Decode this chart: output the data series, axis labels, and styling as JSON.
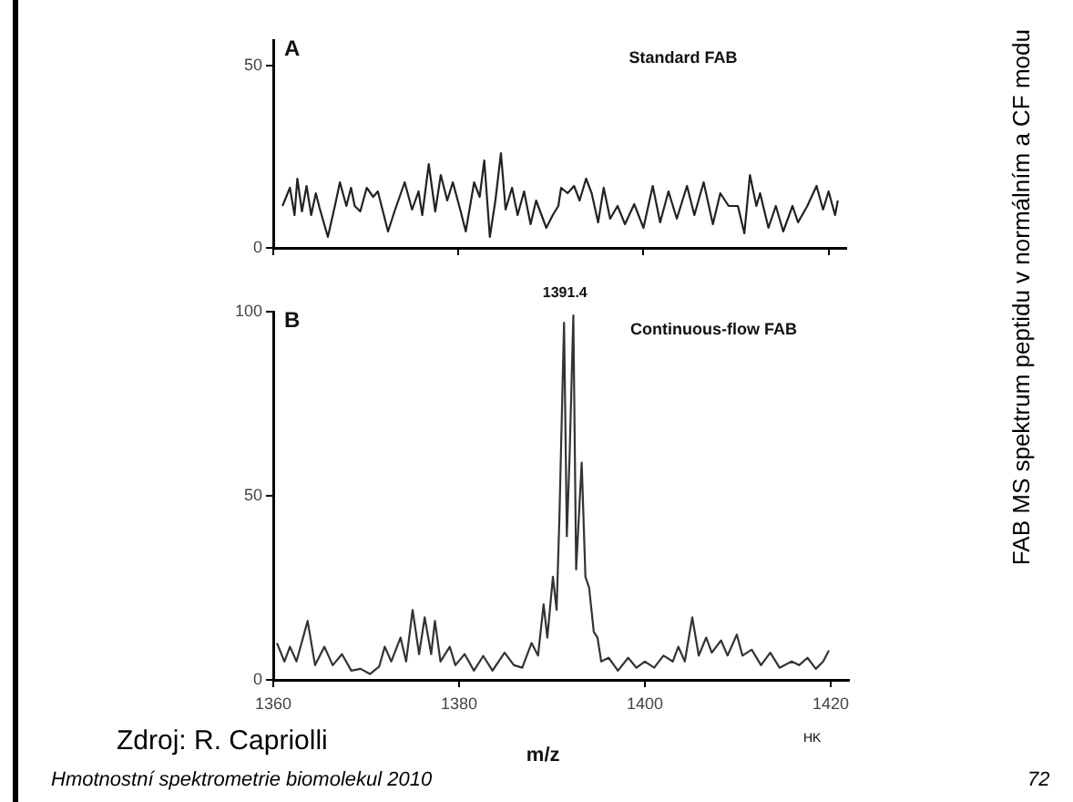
{
  "chart_data": [
    {
      "type": "line",
      "title": "Standard FAB",
      "annotations": [
        "A"
      ],
      "xlim": [
        1360,
        1422
      ],
      "xticks": [
        {
          "value": 1360,
          "label": null
        },
        {
          "value": 1380,
          "label": null
        },
        {
          "value": 1400,
          "label": null
        },
        {
          "value": 1420,
          "label": null
        }
      ],
      "ylim": [
        0,
        57
      ],
      "yticks": [
        0,
        50
      ],
      "tick_labels": "y",
      "grid": false,
      "legend": false,
      "marker": "none",
      "line_style": "solid",
      "series": [
        {
          "color": "#222222",
          "x": [
            1361,
            1361.8,
            1362.3,
            1362.6,
            1363.1,
            1363.6,
            1364.1,
            1364.6,
            1365,
            1365.9,
            1366.7,
            1367.2,
            1367.9,
            1368.4,
            1368.8,
            1369.4,
            1370.1,
            1370.8,
            1371.3,
            1372.4,
            1373.1,
            1374.2,
            1375,
            1375.7,
            1376.1,
            1376.8,
            1377.5,
            1378.1,
            1378.8,
            1379.4,
            1380.2,
            1380.8,
            1381.7,
            1382.3,
            1382.8,
            1383.4,
            1384,
            1384.6,
            1385.1,
            1385.8,
            1386.4,
            1387.1,
            1387.8,
            1388.4,
            1389.5,
            1390.2,
            1390.8,
            1391.1,
            1391.8,
            1392.5,
            1393.1,
            1393.8,
            1394.4,
            1395.1,
            1395.7,
            1396.4,
            1397.2,
            1398,
            1399,
            1400,
            1401,
            1401.8,
            1402.7,
            1403.6,
            1404.7,
            1405.5,
            1406.5,
            1407.5,
            1408.3,
            1409.2,
            1410.2,
            1410.9,
            1411.5,
            1412.2,
            1412.6,
            1413.5,
            1414.3,
            1415.1,
            1416.1,
            1416.7,
            1417.7,
            1418.7,
            1419.4,
            1420,
            1420.7,
            1421
          ],
          "values": [
            11.5,
            16.5,
            9,
            19,
            10,
            17,
            9,
            15,
            11,
            3,
            12,
            18,
            11.5,
            16.5,
            11.5,
            10,
            16.5,
            14,
            15.5,
            4.5,
            10,
            18,
            10.5,
            15.5,
            9,
            23,
            10,
            20,
            13,
            18,
            10.5,
            4.5,
            18,
            14,
            24,
            3,
            13,
            26,
            10.5,
            16.5,
            9,
            15.5,
            6.5,
            13,
            5.5,
            9,
            11.5,
            16.5,
            15,
            17,
            13,
            19,
            15,
            7,
            16.5,
            8,
            11.5,
            6.5,
            12,
            5.5,
            17,
            7,
            15.5,
            8,
            17,
            9,
            18,
            6.5,
            15,
            11.5,
            11.5,
            4,
            20,
            11.5,
            15,
            5.5,
            11.5,
            4.5,
            11.5,
            7,
            11.5,
            17,
            10.5,
            15.5,
            9,
            13
          ]
        }
      ]
    },
    {
      "type": "line",
      "title": "Continuous-flow FAB",
      "xlabel": "m/z",
      "annotations": [
        "B",
        {
          "text": "1391.4",
          "x": 1391.4,
          "y": 100
        },
        "HK",
        "Zdroj: R. Capriolli",
        "Hmotnostní spektrometrie biomolekul 2010",
        "72",
        "FAB MS spektrum peptidu v normálním a CF modu"
      ],
      "xlim": [
        1360,
        1422
      ],
      "xticks": [
        1360,
        1380,
        1400,
        1420
      ],
      "ylim": [
        0,
        100
      ],
      "yticks": [
        0,
        50,
        100
      ],
      "grid": false,
      "legend": false,
      "marker": "none",
      "line_style": "solid",
      "series": [
        {
          "color": "#333333",
          "x": [
            1360.4,
            1361.2,
            1361.8,
            1362.5,
            1363.7,
            1364.5,
            1365.5,
            1366.4,
            1367.4,
            1368.4,
            1369.4,
            1370.4,
            1371.4,
            1372,
            1372.7,
            1373.7,
            1374.3,
            1375,
            1375.7,
            1376.3,
            1377,
            1377.4,
            1378,
            1379,
            1379.6,
            1380.6,
            1381.6,
            1382.6,
            1383.6,
            1384.9,
            1385.9,
            1386.8,
            1387.8,
            1388.5,
            1389.1,
            1389.5,
            1390.1,
            1390.5,
            1390.8,
            1391.3,
            1391.6,
            1391.9,
            1392.3,
            1392.6,
            1393.2,
            1393.6,
            1394,
            1394.5,
            1394.9,
            1395.3,
            1396.1,
            1397.1,
            1398.2,
            1399.1,
            1400,
            1401,
            1402,
            1403,
            1403.6,
            1404.3,
            1405.1,
            1405.8,
            1406.6,
            1407.2,
            1408.2,
            1408.9,
            1409.9,
            1410.5,
            1411.5,
            1412.5,
            1413.5,
            1414.5,
            1415.8,
            1416.6,
            1417.5,
            1418.4,
            1419.2,
            1419.8
          ],
          "values": [
            10,
            5,
            9,
            5,
            16,
            4,
            9,
            4,
            7,
            2.5,
            3,
            1.6,
            3.6,
            9,
            5,
            11.5,
            5,
            19,
            7,
            17,
            7,
            16,
            5,
            9,
            4,
            7,
            2.5,
            6.5,
            2.5,
            7.4,
            4,
            3.3,
            10,
            6.6,
            20.5,
            11.5,
            28,
            19,
            44,
            97,
            39,
            61,
            99,
            30,
            59,
            28,
            25,
            13,
            11.5,
            5,
            6,
            2.5,
            6,
            3.3,
            5,
            3.3,
            6.6,
            5,
            9,
            5,
            17,
            6.6,
            11.5,
            7.4,
            10.7,
            6.6,
            12.3,
            6.6,
            8.2,
            4,
            7.4,
            3.3,
            5,
            4,
            6,
            3,
            5,
            8
          ]
        }
      ]
    }
  ]
}
